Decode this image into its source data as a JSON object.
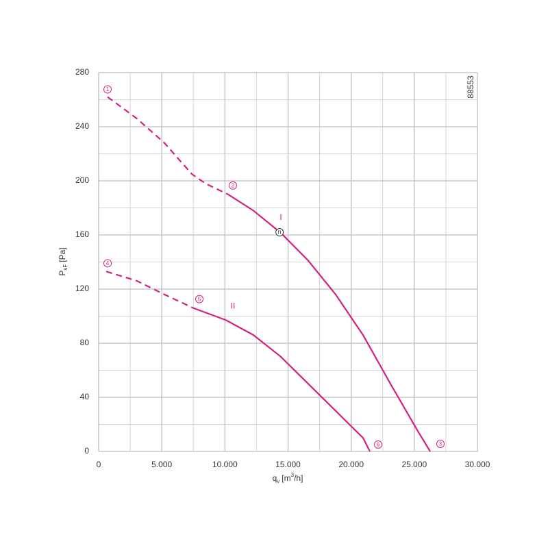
{
  "chart_data": {
    "type": "line",
    "code": "88553",
    "y_label": {
      "main": "P",
      "sub": "sF",
      "unit": "[Pa]"
    },
    "x_label": {
      "main": "q",
      "sub": "v",
      "unit_pre": "[m",
      "sup": "3",
      "unit_post": "/h]"
    },
    "xlim": [
      0,
      30000
    ],
    "ylim": [
      0,
      280
    ],
    "xticks": [
      0,
      {
        "value": 5000,
        "label": "5.000"
      },
      {
        "value": 10000,
        "label": "10.000"
      },
      {
        "value": 15000,
        "label": "15.000"
      },
      {
        "value": 20000,
        "label": "20.000"
      },
      {
        "value": 25000,
        "label": "25.000"
      },
      {
        "value": 30000,
        "label": "30.000"
      }
    ],
    "yticks": [
      0,
      40,
      80,
      120,
      160,
      200,
      240,
      280
    ],
    "x_minor_grid": [
      2500,
      7500,
      12500,
      17500,
      22500,
      27500
    ],
    "y_minor_grid": [
      20,
      60,
      100,
      140,
      180,
      220,
      260
    ],
    "grid": true,
    "series": [
      {
        "name": "I",
        "color": "#d4217f",
        "point_labels": [
          "1",
          "2",
          "3"
        ],
        "dashed": {
          "x": [
            705,
            3038,
            5208,
            7378,
            8463,
            10253
          ],
          "values": [
            262,
            246,
            228,
            205,
            198,
            190
          ]
        },
        "solid": {
          "x": [
            10253,
            12260,
            14430,
            16600,
            18770,
            20940,
            23110,
            25280,
            26256
          ],
          "values": [
            190,
            178,
            161.5,
            141,
            116,
            86,
            50,
            15,
            0
          ]
        }
      },
      {
        "name": "II",
        "color": "#d4217f",
        "point_labels": [
          "4",
          "5",
          "6"
        ],
        "dashed": {
          "x": [
            597,
            3038,
            5208,
            7487
          ],
          "values": [
            133,
            126,
            116,
            106
          ]
        },
        "solid": {
          "x": [
            7487,
            10090,
            12260,
            14430,
            16600,
            18770,
            20940,
            21483
          ],
          "values": [
            106,
            97,
            86,
            70,
            50,
            30,
            10,
            0
          ]
        }
      }
    ],
    "annotations": [
      {
        "text": "n",
        "x": 14330,
        "y": 162
      }
    ]
  }
}
